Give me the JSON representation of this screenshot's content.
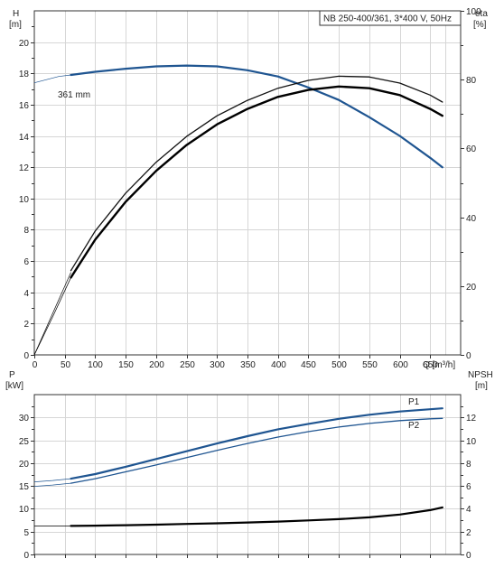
{
  "chart_data": [
    {
      "type": "line",
      "panel": "top",
      "title": "NB 250-400/361, 3*400 V, 50Hz",
      "xlabel": "Q [m³/h]",
      "x_ticks": [
        0,
        50,
        100,
        150,
        200,
        250,
        300,
        350,
        400,
        450,
        500,
        550,
        600,
        650
      ],
      "xlim": [
        0,
        700
      ],
      "left_axis": {
        "label_line1": "H",
        "label_line2": "[m]",
        "ylim": [
          0,
          22
        ],
        "ticks": [
          0,
          2,
          4,
          6,
          8,
          10,
          12,
          14,
          16,
          18,
          20
        ]
      },
      "right_axis": {
        "label_line1": "eta",
        "label_line2": "[%]",
        "ylim": [
          0,
          100
        ],
        "ticks": [
          0,
          20,
          40,
          60,
          80,
          100
        ]
      },
      "grid": true,
      "series": [
        {
          "key": "head",
          "name": "361 mm",
          "axis": "left",
          "color": "#1f5591",
          "thin_x": [
            0,
            20,
            40,
            60
          ],
          "thin_y": [
            17.4,
            17.6,
            17.8,
            17.9
          ],
          "x": [
            60,
            100,
            150,
            200,
            250,
            300,
            350,
            400,
            450,
            500,
            550,
            600,
            650,
            670
          ],
          "y": [
            17.9,
            18.1,
            18.3,
            18.45,
            18.5,
            18.45,
            18.2,
            17.8,
            17.1,
            16.3,
            15.2,
            14.0,
            12.6,
            12.0
          ]
        },
        {
          "key": "eta_thin",
          "axis": "right",
          "color": "#111111",
          "thin_x": [
            0,
            30,
            60
          ],
          "thin_y": [
            0,
            12,
            24
          ],
          "x": [
            60,
            100,
            150,
            200,
            250,
            300,
            350,
            400,
            450,
            500,
            550,
            600,
            650,
            670
          ],
          "y": [
            24.5,
            36,
            47,
            56,
            63.5,
            69.5,
            74,
            77.5,
            79.8,
            81,
            80.8,
            79,
            75.5,
            73.5
          ]
        },
        {
          "key": "eta_thick",
          "axis": "right",
          "color": "#000000",
          "thin_x": [
            0,
            30,
            60
          ],
          "thin_y": [
            0,
            11,
            22.5
          ],
          "x": [
            60,
            100,
            150,
            200,
            250,
            300,
            350,
            400,
            450,
            500,
            550,
            600,
            650,
            670
          ],
          "y": [
            22.5,
            33.5,
            44.5,
            53.5,
            61,
            67,
            71.5,
            75,
            77,
            78,
            77.5,
            75.5,
            71.5,
            69.5
          ]
        }
      ]
    },
    {
      "type": "line",
      "panel": "bottom",
      "xlim": [
        0,
        700
      ],
      "x_ticks": [
        0,
        50,
        100,
        150,
        200,
        250,
        300,
        350,
        400,
        450,
        500,
        550,
        600,
        650
      ],
      "left_axis": {
        "label_line1": "P",
        "label_line2": "[kW]",
        "ylim": [
          0,
          35
        ],
        "ticks": [
          0,
          5,
          10,
          15,
          20,
          25,
          30
        ]
      },
      "right_axis": {
        "label_line1": "NPSH",
        "label_line2": "[m]",
        "ylim": [
          0,
          14
        ],
        "ticks": [
          0,
          2,
          4,
          6,
          8,
          10,
          12
        ]
      },
      "grid": true,
      "series": [
        {
          "key": "p1",
          "name": "P1",
          "axis": "left",
          "color": "#1f5591",
          "thin_x": [
            0,
            30,
            60
          ],
          "thin_y": [
            15.9,
            16.2,
            16.6
          ],
          "x": [
            60,
            100,
            150,
            200,
            250,
            300,
            350,
            400,
            450,
            500,
            550,
            600,
            650,
            670
          ],
          "y": [
            16.6,
            17.6,
            19.2,
            20.9,
            22.6,
            24.3,
            25.9,
            27.4,
            28.6,
            29.7,
            30.6,
            31.3,
            31.8,
            32.0
          ]
        },
        {
          "key": "p2",
          "name": "P2",
          "axis": "left",
          "color": "#1f5591",
          "thin_x": [
            0,
            30,
            60
          ],
          "thin_y": [
            14.9,
            15.2,
            15.6
          ],
          "x": [
            60,
            100,
            150,
            200,
            250,
            300,
            350,
            400,
            450,
            500,
            550,
            600,
            650,
            670
          ],
          "y": [
            15.6,
            16.6,
            18.1,
            19.6,
            21.2,
            22.8,
            24.3,
            25.7,
            26.9,
            27.9,
            28.7,
            29.3,
            29.7,
            29.8
          ]
        },
        {
          "key": "npsh",
          "axis": "right",
          "color": "#000000",
          "thin_x": [
            0,
            60
          ],
          "thin_y": [
            2.48,
            2.5
          ],
          "x": [
            60,
            100,
            150,
            200,
            250,
            300,
            350,
            400,
            450,
            500,
            550,
            600,
            650,
            670
          ],
          "y": [
            2.5,
            2.52,
            2.56,
            2.61,
            2.67,
            2.73,
            2.8,
            2.88,
            2.98,
            3.09,
            3.25,
            3.5,
            3.88,
            4.12
          ]
        }
      ]
    }
  ]
}
